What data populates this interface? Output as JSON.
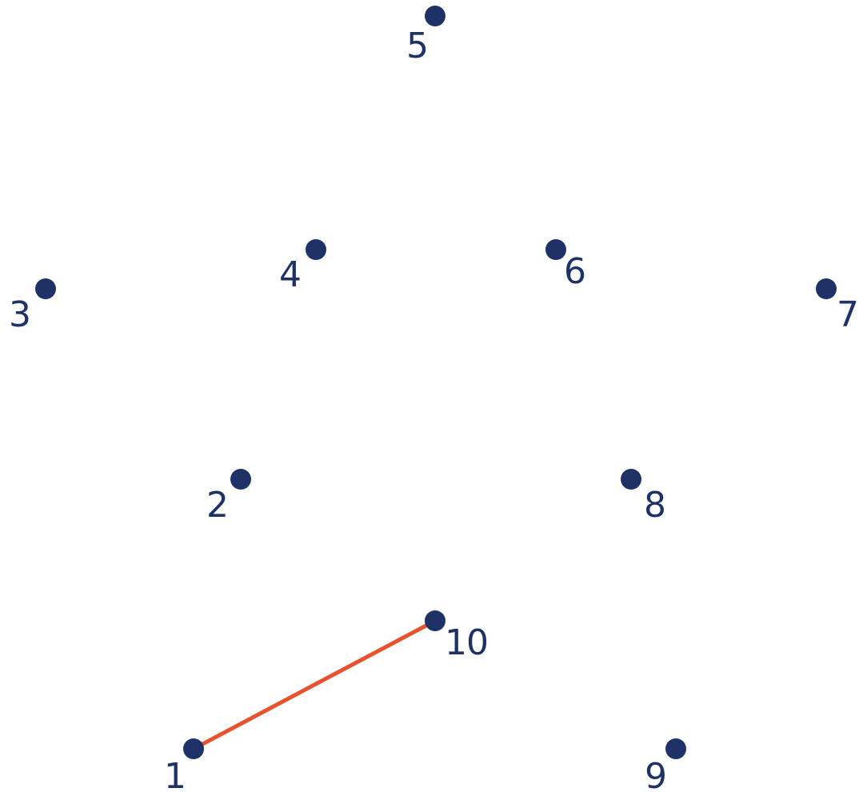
{
  "game": {
    "type": "connect-the-dots",
    "colors": {
      "dot": "#1f3268",
      "label": "#1f3268",
      "line": "#e8522c",
      "background": "#ffffff"
    },
    "dots": [
      {
        "id": "1",
        "label": "1"
      },
      {
        "id": "2",
        "label": "2"
      },
      {
        "id": "3",
        "label": "3"
      },
      {
        "id": "4",
        "label": "4"
      },
      {
        "id": "5",
        "label": "5"
      },
      {
        "id": "6",
        "label": "6"
      },
      {
        "id": "7",
        "label": "7"
      },
      {
        "id": "8",
        "label": "8"
      },
      {
        "id": "9",
        "label": "9"
      },
      {
        "id": "10",
        "label": "10"
      }
    ],
    "connections": [
      {
        "from": "1",
        "to": "10"
      }
    ]
  }
}
